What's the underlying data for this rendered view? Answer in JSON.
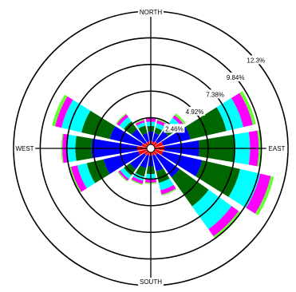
{
  "chart_data": {
    "type": "wind-rose",
    "title": "",
    "directions": [
      "N",
      "NNE",
      "NE",
      "ENE",
      "E",
      "ESE",
      "SE",
      "SSE",
      "S",
      "SSW",
      "SW",
      "WSW",
      "W",
      "WNW",
      "NW",
      "NNW"
    ],
    "ring_values": [
      2.46,
      4.92,
      7.38,
      9.84,
      12.3
    ],
    "ring_labels": [
      "2.46%",
      "4.92%",
      "7.38%",
      "9.84%",
      "12.3%"
    ],
    "compass_labels": {
      "north": "NORTH",
      "south": "SOUTH",
      "east": "EAST",
      "west": "WEST"
    },
    "series": [
      {
        "color": "#ff0000",
        "values": [
          0.3,
          0.3,
          0.4,
          0.8,
          0.9,
          0.8,
          0.4,
          0.3,
          0.3,
          0.3,
          0.4,
          0.8,
          0.9,
          0.5,
          0.3,
          0.3
        ]
      },
      {
        "color": "#0000ff",
        "values": [
          0.9,
          0.8,
          1.2,
          2.6,
          3.2,
          3.7,
          2.5,
          1.5,
          1.0,
          1.2,
          1.6,
          3.3,
          4.2,
          3.0,
          1.5,
          0.8
        ]
      },
      {
        "color": "#006600",
        "values": [
          0.5,
          0.5,
          0.9,
          3.4,
          3.3,
          3.6,
          3.3,
          1.1,
          0.7,
          0.8,
          0.7,
          1.6,
          1.5,
          2.7,
          0.9,
          0.7
        ]
      },
      {
        "color": "#00ffff",
        "values": [
          0.4,
          0.4,
          0.6,
          1.6,
          1.4,
          1.9,
          2.6,
          0.7,
          0.5,
          0.4,
          0.4,
          0.9,
          0.8,
          1.9,
          0.5,
          0.3
        ]
      },
      {
        "color": "#ff00ff",
        "values": [
          0.3,
          0.3,
          0.3,
          0.9,
          0.8,
          1.0,
          0.8,
          0.4,
          0.3,
          0.3,
          0.2,
          0.6,
          0.4,
          0.6,
          0.3,
          0.2
        ]
      },
      {
        "color": "#66ff33",
        "values": [
          0.1,
          0.1,
          0.2,
          0.3,
          0.2,
          0.3,
          0.3,
          0.1,
          0.1,
          0.1,
          0.1,
          0.2,
          0.1,
          0.3,
          0.1,
          0.1
        ]
      }
    ],
    "calm_color": "#ffffff",
    "grid": true,
    "legend": false
  }
}
